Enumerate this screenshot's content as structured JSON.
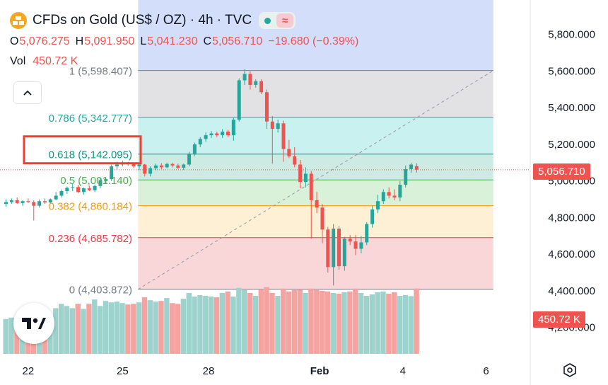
{
  "header": {
    "title": "CFDs on Gold (US$ / OZ) · 4h · TVC",
    "ohlc": [
      {
        "label": "O",
        "value": "5,076.275"
      },
      {
        "label": "H",
        "value": "5,091.950"
      },
      {
        "label": "L",
        "value": "5,041.230"
      },
      {
        "label": "C",
        "value": "5,056.710"
      },
      {
        "label": "",
        "value": "−19.680 (−0.39%)"
      }
    ],
    "volume_label": "Vol",
    "volume_value": "450.72 K"
  },
  "icons": {
    "symbol": "gold-bars-icon",
    "status": "market-open-dot-icon",
    "indicator": "wave-indicator-icon",
    "collapse": "chevron-up-icon",
    "logo": "tradingview-logo-icon",
    "settings": "settings-hexagon-icon"
  },
  "price_tag": "5,056.710",
  "volume_tag": "450.72 K",
  "colors": {
    "up": "#26a69a",
    "down": "#ef5350",
    "up_vol": "#9ed3cd",
    "down_vol": "#f5a3a1",
    "fib_1": "#787b86",
    "fib_0786": "#26a69a",
    "fib_0618": "#089981",
    "fib_05": "#4caf50",
    "fib_0382": "#ff9800",
    "fib_0236": "#f23645",
    "fib_0": "#787b86",
    "highlight_box": "#f23c2f"
  },
  "chart_data": {
    "type": "candlestick",
    "title": "CFDs on Gold (US$ / OZ)",
    "interval": "4h",
    "y_axis_ticks": [
      "5,800.000",
      "5,600.000",
      "5,400.000",
      "5,200.000",
      "5,000.000",
      "4,800.000",
      "4,600.000",
      "4,400.000",
      "4,200.000"
    ],
    "y_tick_values": [
      5800,
      5600,
      5400,
      5200,
      5000,
      4800,
      4600,
      4400,
      4200
    ],
    "x_axis_labels": [
      {
        "label": "22",
        "bar": 4
      },
      {
        "label": "25",
        "bar": 21
      },
      {
        "label": "28",
        "bar": 36.5
      },
      {
        "label": "Feb",
        "bar": 56.5
      },
      {
        "label": "4",
        "bar": 71.5
      },
      {
        "label": "6",
        "bar": 86.5
      }
    ],
    "ylim": [
      4110,
      5840
    ],
    "last_price": 5056.71,
    "fibonacci": {
      "levels": [
        {
          "ratio": "1",
          "price": 5598.407,
          "label": "1 (5,598.407)"
        },
        {
          "ratio": "0.786",
          "price": 5342.777,
          "label": "0.786 (5,342.777)"
        },
        {
          "ratio": "0.618",
          "price": 5142.095,
          "label": "0.618 (5,142.095)"
        },
        {
          "ratio": "0.5",
          "price": 5001.14,
          "label": "0.5 (5,001.140)"
        },
        {
          "ratio": "0.382",
          "price": 4860.184,
          "label": "0.382 (4,860.184)"
        },
        {
          "ratio": "0.236",
          "price": 4685.782,
          "label": "0.236 (4,685.782)"
        },
        {
          "ratio": "0",
          "price": 4403.872,
          "label": "0 (4,403.872)"
        }
      ],
      "start_bar": 23.8,
      "end_bar": 87.8,
      "highlighted_level": "0.618"
    },
    "candles": [
      [
        4870,
        4895,
        4855,
        4880
      ],
      [
        4880,
        4900,
        4870,
        4890
      ],
      [
        4890,
        4905,
        4870,
        4875
      ],
      [
        4875,
        4890,
        4860,
        4885
      ],
      [
        4885,
        4900,
        4875,
        4880
      ],
      [
        4880,
        4890,
        4780,
        4860
      ],
      [
        4860,
        4895,
        4850,
        4885
      ],
      [
        4885,
        4900,
        4870,
        4878
      ],
      [
        4878,
        4900,
        4870,
        4895
      ],
      [
        4895,
        4935,
        4890,
        4915
      ],
      [
        4915,
        4950,
        4905,
        4940
      ],
      [
        4940,
        4965,
        4925,
        4958
      ],
      [
        4958,
        4980,
        4940,
        4962
      ],
      [
        4962,
        4975,
        4930,
        4935
      ],
      [
        4935,
        4960,
        4920,
        4955
      ],
      [
        4955,
        4970,
        4940,
        4945
      ],
      [
        4945,
        4975,
        4935,
        4968
      ],
      [
        4968,
        5010,
        4955,
        5000
      ],
      [
        4995,
        5015,
        4980,
        5005
      ],
      [
        5005,
        5085,
        4995,
        5075
      ],
      [
        5075,
        5100,
        5055,
        5085
      ],
      [
        5085,
        5105,
        5075,
        5092
      ],
      [
        5092,
        5100,
        5078,
        5090
      ],
      [
        5090,
        5095,
        5065,
        5075
      ],
      [
        5075,
        5095,
        5055,
        5085
      ],
      [
        5085,
        5088,
        5020,
        5035
      ],
      [
        5035,
        5075,
        5020,
        5065
      ],
      [
        5065,
        5090,
        5055,
        5080
      ],
      [
        5080,
        5092,
        5060,
        5070
      ],
      [
        5070,
        5095,
        5065,
        5088
      ],
      [
        5088,
        5095,
        5070,
        5080
      ],
      [
        5080,
        5090,
        5060,
        5068
      ],
      [
        5068,
        5090,
        5055,
        5085
      ],
      [
        5085,
        5155,
        5075,
        5145
      ],
      [
        5145,
        5205,
        5130,
        5195
      ],
      [
        5195,
        5235,
        5180,
        5225
      ],
      [
        5225,
        5260,
        5210,
        5245
      ],
      [
        5245,
        5268,
        5230,
        5255
      ],
      [
        5255,
        5265,
        5235,
        5245
      ],
      [
        5245,
        5278,
        5230,
        5265
      ],
      [
        5265,
        5275,
        5235,
        5245
      ],
      [
        5245,
        5340,
        5215,
        5330
      ],
      [
        5330,
        5555,
        5320,
        5545
      ],
      [
        5545,
        5605,
        5520,
        5580
      ],
      [
        5580,
        5595,
        5495,
        5520
      ],
      [
        5520,
        5550,
        5505,
        5540
      ],
      [
        5540,
        5550,
        5470,
        5480
      ],
      [
        5480,
        5495,
        5280,
        5320
      ],
      [
        5320,
        5350,
        5090,
        5280
      ],
      [
        5280,
        5330,
        5260,
        5310
      ],
      [
        5310,
        5325,
        5100,
        5170
      ],
      [
        5170,
        5220,
        5120,
        5130
      ],
      [
        5130,
        5180,
        5070,
        5085
      ],
      [
        5085,
        5110,
        4955,
        4990
      ],
      [
        4990,
        5070,
        4960,
        5035
      ],
      [
        5035,
        5050,
        4680,
        4890
      ],
      [
        4890,
        4935,
        4820,
        4850
      ],
      [
        4850,
        4870,
        4655,
        4730
      ],
      [
        4730,
        4745,
        4495,
        4525
      ],
      [
        4525,
        4760,
        4425,
        4735
      ],
      [
        4735,
        4750,
        4510,
        4530
      ],
      [
        4530,
        4690,
        4505,
        4680
      ],
      [
        4680,
        4700,
        4645,
        4665
      ],
      [
        4665,
        4700,
        4590,
        4625
      ],
      [
        4625,
        4695,
        4600,
        4660
      ],
      [
        4660,
        4770,
        4645,
        4760
      ],
      [
        4760,
        4860,
        4740,
        4840
      ],
      [
        4840,
        4920,
        4820,
        4885
      ],
      [
        4885,
        4950,
        4870,
        4935
      ],
      [
        4935,
        4960,
        4900,
        4915
      ],
      [
        4915,
        4950,
        4890,
        4905
      ],
      [
        4905,
        4995,
        4885,
        4975
      ],
      [
        4975,
        5080,
        4960,
        5060
      ],
      [
        5060,
        5095,
        5040,
        5085
      ],
      [
        5076.275,
        5091.95,
        5041.23,
        5056.71
      ]
    ],
    "volume_k": [
      240,
      250,
      230,
      245,
      238,
      330,
      255,
      268,
      265,
      315,
      345,
      330,
      315,
      345,
      310,
      345,
      375,
      330,
      365,
      355,
      360,
      350,
      340,
      345,
      355,
      390,
      370,
      360,
      365,
      385,
      350,
      345,
      380,
      420,
      395,
      405,
      400,
      395,
      390,
      420,
      430,
      395,
      455,
      440,
      420,
      400,
      445,
      460,
      420,
      400,
      450,
      430,
      440,
      445,
      420,
      450,
      440,
      435,
      430,
      420,
      415,
      425,
      430,
      450,
      420,
      400,
      410,
      425,
      430,
      415,
      425,
      400,
      405,
      398,
      450.72
    ]
  }
}
